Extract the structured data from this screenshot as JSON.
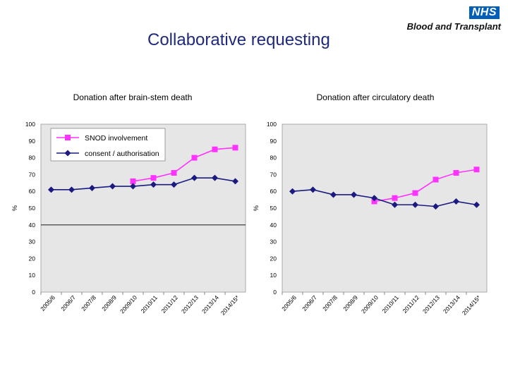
{
  "slide": {
    "title": "Collaborative requesting"
  },
  "logo": {
    "nhs": "NHS",
    "org": "Blood and Transplant",
    "nhs_color": "#005eb8"
  },
  "legend": {
    "series1": "SNOD involvement",
    "series2": "consent / authorisation"
  },
  "colors": {
    "snod": "#ff33ff",
    "consent": "#1a1a80",
    "plot_bg": "#e6e6e6"
  },
  "chart_data": [
    {
      "type": "line",
      "title": "Donation after brain-stem death",
      "ylabel": "%",
      "ylim": [
        0,
        100
      ],
      "yticks": [
        0,
        10,
        20,
        30,
        40,
        50,
        60,
        70,
        80,
        90,
        100
      ],
      "categories": [
        "2005/6",
        "2006/7",
        "2007/8",
        "2008/9",
        "2009/10",
        "2010/11",
        "2011/12",
        "2012/13",
        "2013/14",
        "2014/15*"
      ],
      "reference_line": 40,
      "legend_position": "top-left",
      "series": [
        {
          "name": "SNOD involvement",
          "values": [
            null,
            null,
            null,
            null,
            66,
            68,
            71,
            80,
            85,
            86
          ]
        },
        {
          "name": "consent / authorisation",
          "values": [
            61,
            61,
            62,
            63,
            63,
            64,
            64,
            68,
            68,
            66
          ]
        }
      ]
    },
    {
      "type": "line",
      "title": "Donation after circulatory death",
      "ylabel": "%",
      "ylim": [
        0,
        100
      ],
      "yticks": [
        0,
        10,
        20,
        30,
        40,
        50,
        60,
        70,
        80,
        90,
        100
      ],
      "categories": [
        "2005/6",
        "2006/7",
        "2007/8",
        "2008/9",
        "2009/10",
        "2010/11",
        "2011/12",
        "2012/13",
        "2013/14",
        "2014/15*"
      ],
      "series": [
        {
          "name": "SNOD involvement",
          "values": [
            null,
            null,
            null,
            null,
            54,
            56,
            59,
            67,
            71,
            73
          ]
        },
        {
          "name": "consent / authorisation",
          "values": [
            60,
            61,
            58,
            58,
            56,
            52,
            52,
            51,
            54,
            52
          ]
        }
      ]
    }
  ]
}
